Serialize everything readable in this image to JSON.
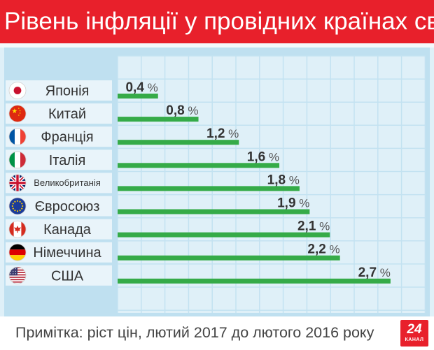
{
  "header": {
    "title": "Рівень інфляції у провідних країнах світу"
  },
  "footer": {
    "note": "Примітка: ріст цін, лютий 2017 до лютого 2016 року"
  },
  "logo": {
    "number": "24",
    "text": "КАНАЛ",
    "color": "#e8202b"
  },
  "chart_data": {
    "type": "bar",
    "orientation": "horizontal",
    "unit": "%",
    "title": "Рівень інфляції у провідних країнах світу",
    "categories": [
      "Японія",
      "Китай",
      "Франція",
      "Італія",
      "Великобританія",
      "Євросоюз",
      "Канада",
      "Німеччина",
      "США"
    ],
    "values": [
      0.4,
      0.8,
      1.2,
      1.6,
      1.8,
      1.9,
      2.1,
      2.2,
      2.7
    ],
    "value_labels": [
      "0,4",
      "0,8",
      "1,2",
      "1,6",
      "1,8",
      "1,9",
      "2,1",
      "2,2",
      "2,7"
    ],
    "flags": [
      "japan-flag-icon",
      "china-flag-icon",
      "france-flag-icon",
      "italy-flag-icon",
      "uk-flag-icon",
      "eu-flag-icon",
      "canada-flag-icon",
      "germany-flag-icon",
      "usa-flag-icon"
    ],
    "xlim": [
      0,
      3.5
    ],
    "grid": true,
    "legend": "none",
    "colors": {
      "bar": "#35ab48",
      "grid_bg": "#dff0f8",
      "grid_line": "#c3e2f1",
      "label_row": "#e9f4fa",
      "label_text": "#333333",
      "value_text": "#333333"
    }
  }
}
